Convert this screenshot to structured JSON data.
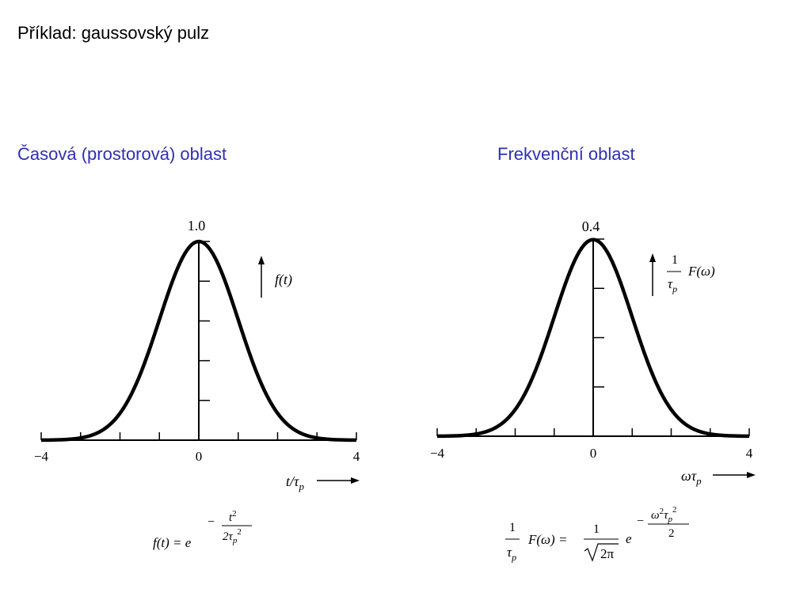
{
  "slide": {
    "title": "Příklad: gaussovský pulz",
    "heading_color": "#2f2fb4"
  },
  "left_panel": {
    "heading": "Časová (prostorová) oblast",
    "y_label": "f(t)",
    "x_label": "t/τ",
    "x_label_sub": "p",
    "formula": {
      "lhs": "f(t) = e",
      "minus": "−",
      "num": "t",
      "num_sup": "2",
      "den": "2τ",
      "den_sub": "p",
      "den_sup": "2"
    }
  },
  "right_panel": {
    "heading": "Frekvenční oblast",
    "y_label_num": "1",
    "y_label_den": "τ",
    "y_label_den_sub": "p",
    "y_label_fn": "F(ω)",
    "x_label": "ωτ",
    "x_label_sub": "p",
    "formula": {
      "lhs_num": "1",
      "lhs_den": "τ",
      "lhs_den_sub": "p",
      "lhs_fn": "F(ω) =",
      "frac_num": "1",
      "frac_den": "2π",
      "exp_base": "e",
      "minus": "−",
      "exp_num": "ω",
      "exp_num_sup": "2",
      "exp_num_tau": "τ",
      "exp_num_tau_sub": "p",
      "exp_num_tau_sup": "2",
      "exp_den": "2"
    }
  },
  "chart_data": [
    {
      "type": "line",
      "function": "gaussian",
      "xlim": [
        -4,
        4
      ],
      "ylim": [
        0,
        1.0
      ],
      "peak_label": "1.0",
      "x_ticks": [
        -4,
        -3,
        -2,
        -1,
        0,
        1,
        2,
        3,
        4
      ],
      "x_tick_labels": [
        {
          "x": -4,
          "text": "−4"
        },
        {
          "x": 0,
          "text": "0"
        },
        {
          "x": 4,
          "text": "4"
        }
      ],
      "y_ticks": [
        0.2,
        0.4,
        0.6,
        0.8,
        1.0
      ],
      "x": [
        -4,
        -3.5,
        -3,
        -2.5,
        -2,
        -1.5,
        -1,
        -0.5,
        0,
        0.5,
        1,
        1.5,
        2,
        2.5,
        3,
        3.5,
        4
      ],
      "y": [
        0.0003,
        0.0022,
        0.0111,
        0.0439,
        0.1353,
        0.3247,
        0.6065,
        0.8825,
        1.0,
        0.8825,
        0.6065,
        0.3247,
        0.1353,
        0.0439,
        0.0111,
        0.0022,
        0.0003
      ]
    },
    {
      "type": "line",
      "function": "gaussian",
      "xlim": [
        -4,
        4
      ],
      "ylim": [
        0,
        0.4
      ],
      "peak_label": "0.4",
      "x_ticks": [
        -4,
        -3,
        -2,
        -1,
        0,
        1,
        2,
        3,
        4
      ],
      "x_tick_labels": [
        {
          "x": -4,
          "text": "−4"
        },
        {
          "x": 0,
          "text": "0"
        },
        {
          "x": 4,
          "text": "4"
        }
      ],
      "y_ticks": [
        0.1,
        0.2,
        0.3,
        0.4
      ],
      "x": [
        -4,
        -3.5,
        -3,
        -2.5,
        -2,
        -1.5,
        -1,
        -0.5,
        0,
        0.5,
        1,
        1.5,
        2,
        2.5,
        3,
        3.5,
        4
      ],
      "y": [
        0.0001,
        0.0009,
        0.0044,
        0.0175,
        0.054,
        0.1295,
        0.242,
        0.3521,
        0.3989,
        0.3521,
        0.242,
        0.1295,
        0.054,
        0.0175,
        0.0044,
        0.0009,
        0.0001
      ]
    }
  ]
}
